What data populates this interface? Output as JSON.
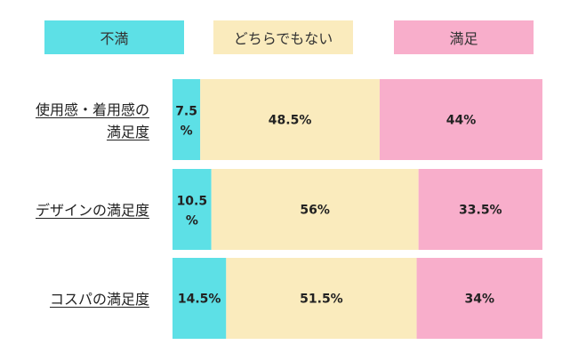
{
  "chart_data": {
    "type": "bar",
    "stacked": true,
    "orientation": "horizontal",
    "percent_stacked": true,
    "legend_position": "top",
    "categories": [
      "使用感・着用感の満足度",
      "デザインの満足度",
      "コスパの満足度"
    ],
    "series": [
      {
        "name": "不満",
        "color": "#5de0e6",
        "values": [
          7.5,
          10.5,
          14.5
        ],
        "labels": [
          "7.5 %",
          "10.5 %",
          "14.5%"
        ]
      },
      {
        "name": "どちらでもない",
        "color": "#faebbd",
        "values": [
          48.5,
          56,
          51.5
        ],
        "labels": [
          "48.5%",
          "56%",
          "51.5%"
        ]
      },
      {
        "name": "満足",
        "color": "#f8aecb",
        "values": [
          44,
          33.5,
          34
        ],
        "labels": [
          "44%",
          "33.5%",
          "34%"
        ]
      }
    ],
    "category_label_lines": [
      [
        "使用感・着用感の",
        "満足度"
      ],
      [
        "デザインの満足度"
      ],
      [
        "コスパの満足度"
      ]
    ]
  }
}
